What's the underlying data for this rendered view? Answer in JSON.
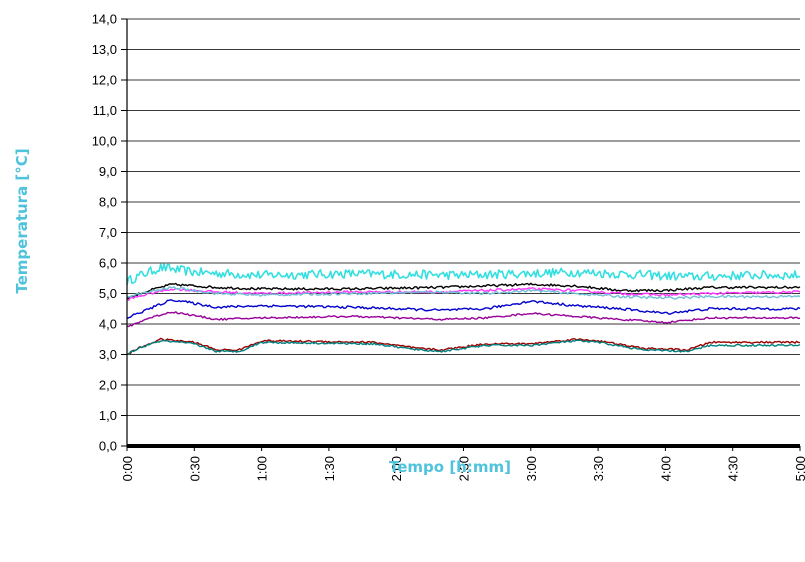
{
  "chart_data": {
    "type": "line",
    "xlabel": "Tempo [h:mm]",
    "ylabel": "Temperatura [°C]",
    "ylim": [
      0,
      14
    ],
    "ytick_labels": [
      "0,0",
      "1,0",
      "2,0",
      "3,0",
      "4,0",
      "5,0",
      "6,0",
      "7,0",
      "8,0",
      "9,0",
      "10,0",
      "11,0",
      "12,0",
      "13,0",
      "14,0"
    ],
    "xlim_minutes": [
      0,
      300
    ],
    "xtick_labels": [
      "0:00",
      "0:30",
      "1:00",
      "1:30",
      "2:00",
      "2:30",
      "3:00",
      "3:30",
      "4:00",
      "4:30",
      "5:00"
    ],
    "grid": "horizontal",
    "legend": "none",
    "series": [
      {
        "color": "#33dfe0",
        "noise": 0.15,
        "x": [
          0,
          6,
          15,
          30,
          60,
          100,
          150,
          200,
          250,
          280,
          300
        ],
        "values": [
          5.4,
          5.6,
          5.85,
          5.7,
          5.6,
          5.65,
          5.6,
          5.7,
          5.55,
          5.6,
          5.6
        ]
      },
      {
        "color": "#000000",
        "noise": 0.04,
        "x": [
          0,
          10,
          20,
          40,
          60,
          100,
          140,
          160,
          180,
          200,
          220,
          240,
          260,
          300
        ],
        "values": [
          4.85,
          5.1,
          5.3,
          5.2,
          5.15,
          5.15,
          5.2,
          5.25,
          5.3,
          5.25,
          5.1,
          5.1,
          5.2,
          5.2
        ]
      },
      {
        "color": "#ff33ff",
        "noise": 0.04,
        "x": [
          0,
          10,
          20,
          40,
          60,
          100,
          140,
          160,
          180,
          200,
          220,
          240,
          260,
          300
        ],
        "values": [
          4.8,
          5.0,
          5.15,
          5.05,
          5.0,
          5.05,
          5.05,
          5.1,
          5.15,
          5.1,
          5.0,
          4.95,
          5.0,
          5.05
        ]
      },
      {
        "color": "#6fc0d4",
        "noise": 0.04,
        "x": [
          0,
          10,
          20,
          40,
          60,
          100,
          140,
          160,
          180,
          200,
          220,
          240,
          260,
          300
        ],
        "values": [
          4.9,
          5.05,
          5.2,
          5.0,
          4.95,
          5.0,
          5.05,
          5.0,
          5.1,
          5.0,
          4.9,
          4.85,
          4.9,
          4.9
        ]
      },
      {
        "color": "#0000cc",
        "noise": 0.04,
        "x": [
          0,
          10,
          20,
          40,
          60,
          100,
          140,
          160,
          180,
          200,
          220,
          240,
          260,
          300
        ],
        "values": [
          4.2,
          4.5,
          4.8,
          4.55,
          4.6,
          4.55,
          4.45,
          4.5,
          4.75,
          4.6,
          4.5,
          4.35,
          4.5,
          4.5
        ]
      },
      {
        "color": "#990099",
        "noise": 0.03,
        "x": [
          0,
          10,
          20,
          40,
          60,
          100,
          140,
          160,
          180,
          200,
          220,
          240,
          260,
          300
        ],
        "values": [
          3.9,
          4.2,
          4.4,
          4.15,
          4.2,
          4.25,
          4.15,
          4.2,
          4.35,
          4.25,
          4.15,
          4.05,
          4.2,
          4.2
        ]
      },
      {
        "color": "#990000",
        "noise": 0.03,
        "x": [
          0,
          5,
          15,
          30,
          40,
          50,
          60,
          110,
          130,
          140,
          160,
          180,
          200,
          210,
          230,
          250,
          260,
          300
        ],
        "values": [
          3.0,
          3.2,
          3.5,
          3.4,
          3.15,
          3.15,
          3.45,
          3.4,
          3.2,
          3.15,
          3.35,
          3.35,
          3.5,
          3.45,
          3.2,
          3.15,
          3.4,
          3.4
        ]
      },
      {
        "color": "#00807f",
        "noise": 0.03,
        "x": [
          0,
          5,
          15,
          30,
          40,
          50,
          60,
          110,
          130,
          140,
          160,
          180,
          200,
          210,
          230,
          250,
          260,
          300
        ],
        "values": [
          3.0,
          3.2,
          3.45,
          3.35,
          3.1,
          3.1,
          3.4,
          3.35,
          3.15,
          3.1,
          3.3,
          3.3,
          3.45,
          3.4,
          3.15,
          3.1,
          3.3,
          3.3
        ]
      }
    ]
  }
}
